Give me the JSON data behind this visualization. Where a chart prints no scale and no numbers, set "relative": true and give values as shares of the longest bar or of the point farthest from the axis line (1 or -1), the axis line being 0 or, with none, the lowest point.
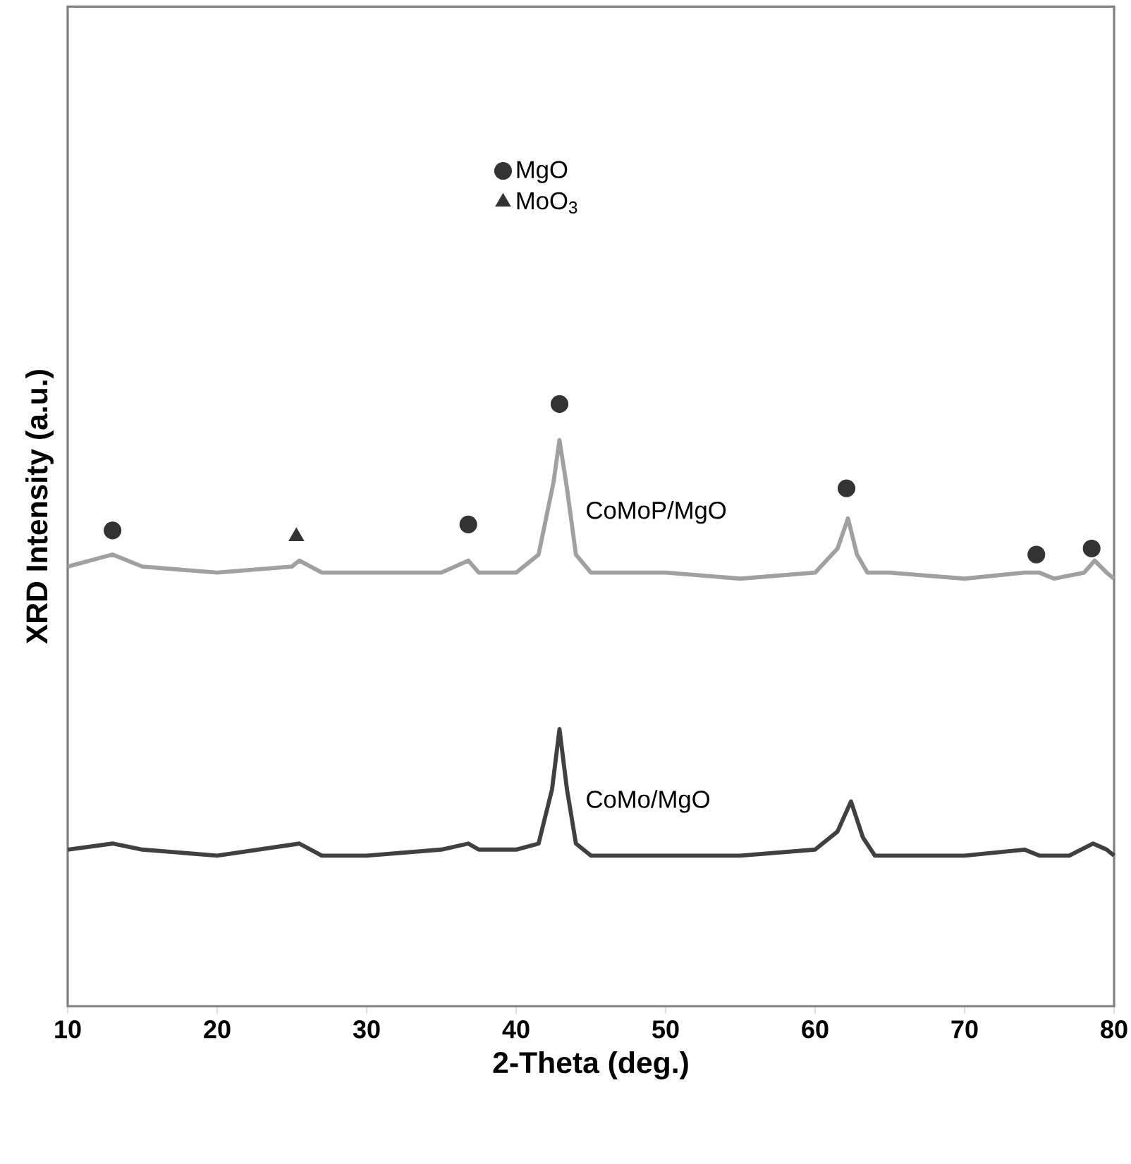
{
  "chart_data": {
    "type": "line",
    "xlabel": "2-Theta (deg.)",
    "ylabel": "XRD Intensity (a.u.)",
    "relative": true,
    "xlim": [
      10,
      80
    ],
    "xticks": [
      10,
      20,
      30,
      40,
      50,
      60,
      70,
      80
    ],
    "legend": "top",
    "grid": false,
    "marker": "none",
    "series": [
      {
        "name": "CoMoP/MgO",
        "color": "#a0a0a0",
        "x": [
          10,
          13,
          15,
          20,
          25,
          25.5,
          27,
          30,
          35,
          36.8,
          37.5,
          40,
          41.5,
          42.5,
          42.9,
          43.4,
          44,
          45,
          50,
          55,
          60,
          61.5,
          62.2,
          62.8,
          63.5,
          65,
          70,
          74,
          75,
          76,
          78,
          78.7,
          79.5,
          80
        ],
        "values": [
          0.73,
          0.75,
          0.73,
          0.72,
          0.73,
          0.74,
          0.72,
          0.72,
          0.72,
          0.74,
          0.72,
          0.72,
          0.75,
          0.87,
          0.94,
          0.86,
          0.75,
          0.72,
          0.72,
          0.71,
          0.72,
          0.76,
          0.81,
          0.75,
          0.72,
          0.72,
          0.71,
          0.72,
          0.72,
          0.71,
          0.72,
          0.74,
          0.72,
          0.71
        ]
      },
      {
        "name": "CoMo/MgO",
        "color": "#404040",
        "x": [
          10,
          13,
          15,
          20,
          25.5,
          27,
          30,
          35,
          36.8,
          37.5,
          40,
          41.5,
          42.4,
          42.9,
          43.4,
          44,
          45,
          50,
          55,
          60,
          61.5,
          62.4,
          63.2,
          64,
          70,
          74,
          75,
          77,
          78.6,
          79.5,
          80
        ],
        "values": [
          0.26,
          0.27,
          0.26,
          0.25,
          0.27,
          0.25,
          0.25,
          0.26,
          0.27,
          0.26,
          0.26,
          0.27,
          0.36,
          0.46,
          0.36,
          0.27,
          0.25,
          0.25,
          0.25,
          0.26,
          0.29,
          0.34,
          0.28,
          0.25,
          0.25,
          0.26,
          0.25,
          0.25,
          0.27,
          0.26,
          0.25
        ]
      },
      {
        "name": "MgO",
        "type": "scatter",
        "marker": "circle",
        "color": "#333333",
        "x": [
          13,
          36.8,
          42.9,
          62.1,
          74.8,
          78.5
        ],
        "values": [
          0.79,
          0.8,
          1,
          0.86,
          0.75,
          0.76
        ]
      },
      {
        "name": "MoO$_{3}$",
        "type": "scatter",
        "marker": "triangle",
        "color": "#333333",
        "x": [
          25.3
        ],
        "values": [
          0.78
        ]
      }
    ]
  }
}
